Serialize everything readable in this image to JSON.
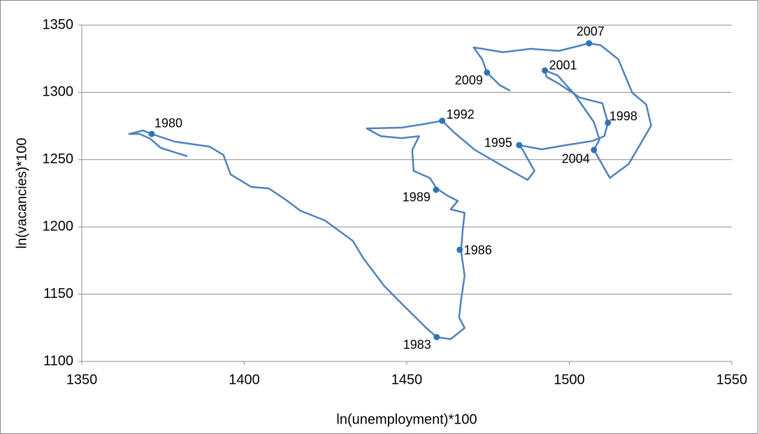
{
  "chart_data": {
    "type": "line",
    "xlabel": "ln(unemployment)*100",
    "ylabel": "ln(vacancies)*100",
    "xlim": [
      1350,
      1550
    ],
    "ylim": [
      1100,
      1350
    ],
    "xticks": [
      1350,
      1400,
      1450,
      1500,
      1550
    ],
    "yticks": [
      1100,
      1150,
      1200,
      1250,
      1300,
      1350
    ],
    "grid": true,
    "series": [
      {
        "color": "#4f81bd",
        "x": [
          1382.5,
          1374.3,
          1371.1,
          1367.8,
          1364.6,
          1368.9,
          1371.5,
          1378.6,
          1389.3,
          1393.6,
          1395.8,
          1402.2,
          1407.6,
          1413.0,
          1417.3,
          1424.8,
          1433.4,
          1436.6,
          1443.1,
          1449.5,
          1456.0,
          1459.2,
          1463.5,
          1467.8,
          1466.1,
          1466.7,
          1467.8,
          1466.7,
          1467.2,
          1467.8,
          1463.5,
          1465.7,
          1462.4,
          1459.2,
          1457.1,
          1452.1,
          1451.7,
          1453.8,
          1448.5,
          1442.0,
          1437.7,
          1448.5,
          1454.9,
          1460.9,
          1464.6,
          1471.0,
          1479.6,
          1487.2,
          1489.3,
          1485.7,
          1484.6,
          1491.5,
          1499.0,
          1507.2,
          1510.8,
          1511.9,
          1510.2,
          1503.3,
          1496.8,
          1493.0,
          1492.5,
          1496.4,
          1501.6,
          1507.6,
          1509.3,
          1507.6,
          1512.5,
          1518.3,
          1525.2,
          1523.7,
          1519.4,
          1515.1,
          1509.7,
          1506.1,
          1496.8,
          1488.2,
          1479.6,
          1473.2,
          1470.6,
          1473.2,
          1474.7,
          1478.6,
          1481.8
        ],
        "values": [
          1252.5,
          1258.7,
          1265.5,
          1269.1,
          1269.1,
          1271.7,
          1269.1,
          1263.4,
          1259.7,
          1253.5,
          1239.0,
          1229.7,
          1228.6,
          1219.8,
          1212.0,
          1204.8,
          1189.7,
          1176.8,
          1156.0,
          1140.4,
          1124.9,
          1118.1,
          1116.6,
          1124.9,
          1132.7,
          1145.6,
          1163.8,
          1181.9,
          1197.5,
          1210.5,
          1213.1,
          1219.3,
          1223.4,
          1228.6,
          1236.4,
          1241.6,
          1257.2,
          1267.5,
          1266.0,
          1267.5,
          1273.2,
          1273.8,
          1276.3,
          1278.9,
          1270.1,
          1257.2,
          1245.2,
          1234.9,
          1241.6,
          1257.2,
          1260.8,
          1257.7,
          1260.8,
          1263.9,
          1267.5,
          1277.4,
          1291.9,
          1296.1,
          1306.4,
          1311.6,
          1316.3,
          1312.7,
          1298.6,
          1277.9,
          1264.9,
          1257.2,
          1236.4,
          1246.8,
          1275.3,
          1290.9,
          1299.7,
          1324.6,
          1335.0,
          1336.5,
          1330.8,
          1332.4,
          1329.8,
          1332.4,
          1333.4,
          1324.6,
          1314.7,
          1305.4,
          1301.2
        ]
      }
    ],
    "points": {
      "color": "#2e75b6",
      "labels": [
        "1980",
        "1983",
        "1986",
        "1989",
        "1992",
        "1995",
        "1998",
        "2001",
        "2004",
        "2007",
        "2009"
      ],
      "x": [
        1371.5,
        1459.2,
        1466.3,
        1459.0,
        1460.9,
        1484.6,
        1511.9,
        1492.5,
        1507.6,
        1506.1,
        1474.7
      ],
      "values": [
        1269.1,
        1118.1,
        1183.0,
        1227.6,
        1278.9,
        1260.8,
        1277.4,
        1316.3,
        1257.2,
        1336.5,
        1314.7
      ]
    }
  }
}
